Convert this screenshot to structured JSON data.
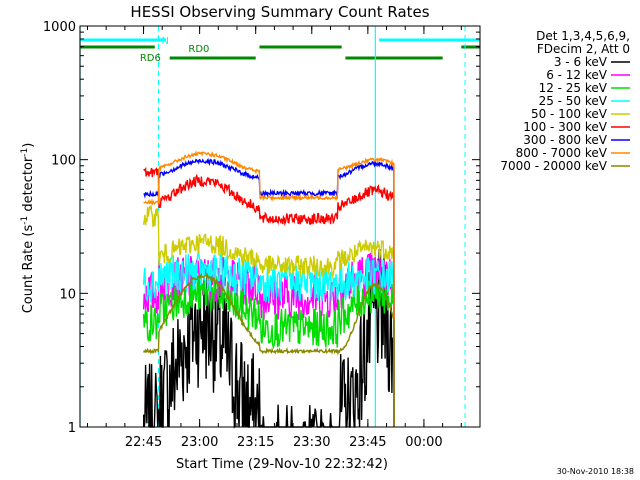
{
  "chart_data": {
    "type": "line",
    "title": "HESSI Observing Summary Count Rates",
    "xlabel": "Start Time (29-Nov-10 22:32:42)",
    "ylabel": "Count Rate (s",
    "ylabel_sup1": "-1",
    "ylabel_mid": " detector",
    "ylabel_sup2": "-1",
    "ylabel_end": ")",
    "yscale": "log",
    "ylim": [
      1,
      1000
    ],
    "xlim_minutes": [
      -2,
      105
    ],
    "x_unit": "minutes after 22:30",
    "x_ticks": [
      {
        "label": "22:45",
        "min": 15
      },
      {
        "label": "23:00",
        "min": 30
      },
      {
        "label": "23:15",
        "min": 45
      },
      {
        "label": "23:30",
        "min": 60
      },
      {
        "label": "23:45",
        "min": 75
      },
      {
        "label": "00:00",
        "min": 90
      }
    ],
    "y_ticks": [
      {
        "label": "1",
        "value": 1
      },
      {
        "label": "10",
        "value": 10
      },
      {
        "label": "100",
        "value": 100
      },
      {
        "label": "1000",
        "value": 1000
      }
    ],
    "legend_header": [
      "Det 1,3,4,5,6,9,",
      "FDecim 2, Att 0"
    ],
    "legend_placement": "right",
    "series": [
      {
        "name": "3 - 6 keV",
        "color": "#000000"
      },
      {
        "name": "6 - 12 keV",
        "color": "#ff00ff"
      },
      {
        "name": "12 - 25 keV",
        "color": "#00dd00"
      },
      {
        "name": "25 - 50 keV",
        "color": "#00ffff"
      },
      {
        "name": "50 - 100 keV",
        "color": "#cccc00"
      },
      {
        "name": "100 - 300 keV",
        "color": "#ff0000"
      },
      {
        "name": "300 - 800 keV",
        "color": "#0000ff"
      },
      {
        "name": "800 - 7000 keV",
        "color": "#ff8800"
      },
      {
        "name": "7000 - 20000 keV",
        "color": "#888800"
      }
    ],
    "annotations": {
      "N": "N",
      "RD0": "RD0",
      "RD6": "RD6"
    },
    "footer_date": "30-Nov-2010 18:38"
  }
}
